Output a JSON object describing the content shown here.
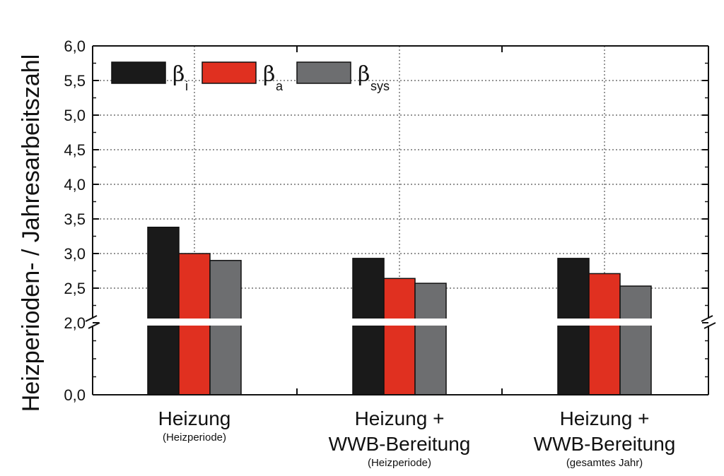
{
  "chart_data": {
    "type": "bar",
    "ylabel": "Heizperioden- / Jahresarbeitszahl",
    "categories": [
      {
        "lines": [
          "Heizung"
        ],
        "sub": "(Heizperiode)"
      },
      {
        "lines": [
          "Heizung +",
          "WWB-Bereitung"
        ],
        "sub": "(Heizperiode)"
      },
      {
        "lines": [
          "Heizung +",
          "WWB-Bereitung"
        ],
        "sub": "(gesamtes Jahr)"
      }
    ],
    "series": [
      {
        "name": "β",
        "subscript": "i",
        "color": "#1a1a1a",
        "values": [
          3.38,
          2.93,
          2.93
        ]
      },
      {
        "name": "β",
        "subscript": "a",
        "color": "#e03020",
        "values": [
          3.0,
          2.64,
          2.71
        ]
      },
      {
        "name": "β",
        "subscript": "sys",
        "color": "#6d6e70",
        "values": [
          2.9,
          2.57,
          2.53
        ]
      }
    ],
    "yticks": [
      "0,0",
      "2,0",
      "2,5",
      "3,0",
      "3,5",
      "4,0",
      "4,5",
      "5,0",
      "5,5",
      "6,0"
    ],
    "ylim": [
      0,
      6.0
    ],
    "axis_break": [
      0,
      2.0
    ],
    "grid": true,
    "legend_position": "top-left"
  }
}
